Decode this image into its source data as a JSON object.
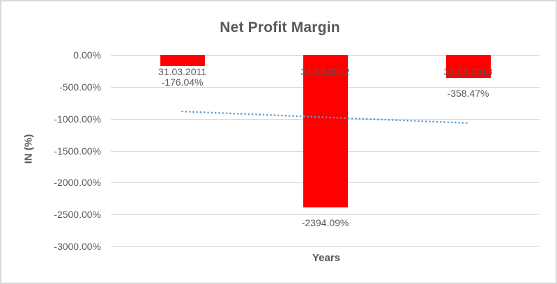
{
  "chart_data": {
    "type": "bar",
    "title": "Net Profit Margin",
    "xlabel": "Years",
    "ylabel": "IN (%)",
    "categories": [
      "31.03.2011",
      "31.03.2012",
      "31.03.2013"
    ],
    "values": [
      -176.04,
      -2394.09,
      -358.47
    ],
    "data_labels": [
      "-176.04%",
      "-2394.09%",
      "-358.47%"
    ],
    "ylim": [
      -3000,
      0
    ],
    "yticks": [
      0,
      -500,
      -1000,
      -1500,
      -2000,
      -2500,
      -3000
    ],
    "ytick_labels": [
      "0.00%",
      "-500.00%",
      "-1000.00%",
      "-1500.00%",
      "-2000.00%",
      "-2500.00%",
      "-3000.00%"
    ],
    "grid": true,
    "legend": "none",
    "bar_color": "#ff0000",
    "trendline": {
      "type": "linear",
      "style": "dotted",
      "color": "#5b9bd5"
    },
    "text_color": "#595959",
    "gridline_color": "#d9d9d9",
    "border_color": "#d9d9d9",
    "background_color": "#ffffff"
  }
}
